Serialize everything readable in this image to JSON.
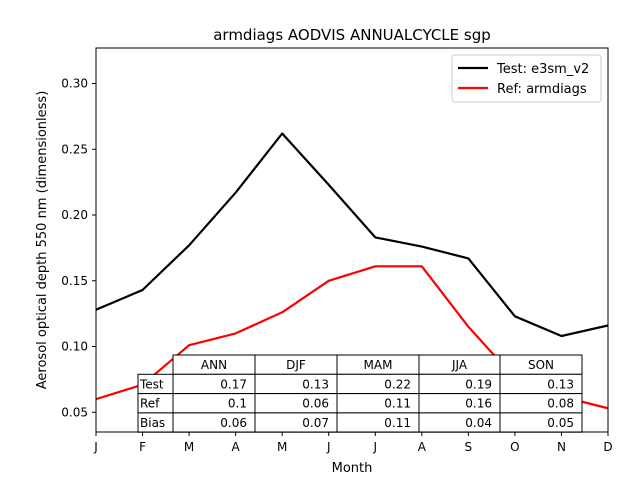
{
  "chart_data": {
    "type": "line",
    "title": "armdiags AODVIS ANNUALCYCLE sgp",
    "xlabel": "Month",
    "ylabel": "Aerosol optical depth 550 nm (dimensionless)",
    "categories": [
      "J",
      "F",
      "M",
      "A",
      "M",
      "J",
      "J",
      "A",
      "S",
      "O",
      "N",
      "D"
    ],
    "ylim": [
      0.035,
      0.327
    ],
    "yticks": [
      "0.05",
      "0.10",
      "0.15",
      "0.20",
      "0.25",
      "0.30"
    ],
    "grid": false,
    "legend_position": "top-right",
    "series": [
      {
        "name": "Test: e3sm_v2",
        "color": "#000000",
        "values": [
          0.128,
          0.143,
          0.177,
          0.217,
          0.262,
          0.223,
          0.183,
          0.176,
          0.167,
          0.123,
          0.108,
          0.116
        ]
      },
      {
        "name": "Ref: armdiags",
        "color": "#ff0000",
        "values": [
          0.06,
          0.071,
          0.101,
          0.11,
          0.126,
          0.15,
          0.161,
          0.161,
          0.115,
          0.076,
          0.062,
          0.053
        ]
      }
    ],
    "table": {
      "columns": [
        "ANN",
        "DJF",
        "MAM",
        "JJA",
        "SON"
      ],
      "rows": [
        {
          "label": "Test",
          "values": [
            "0.17",
            "0.13",
            "0.22",
            "0.19",
            "0.13"
          ]
        },
        {
          "label": "Ref",
          "values": [
            "0.1",
            "0.06",
            "0.11",
            "0.16",
            "0.08"
          ]
        },
        {
          "label": "Bias",
          "values": [
            "0.06",
            "0.07",
            "0.11",
            "0.04",
            "0.05"
          ]
        }
      ]
    }
  }
}
